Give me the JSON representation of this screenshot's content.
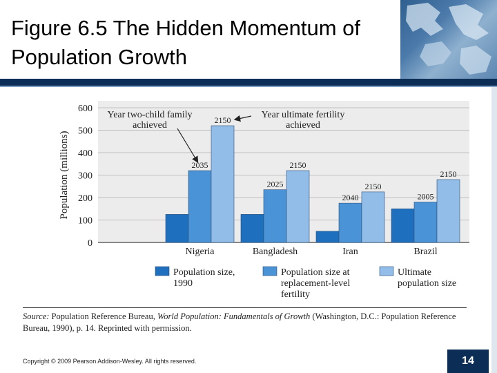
{
  "title": "Figure 6.5 The Hidden Momentum of Population Growth",
  "chart_data": {
    "type": "bar",
    "ylabel": "Population (millions)",
    "ylim": [
      0,
      600
    ],
    "yticks": [
      0,
      100,
      200,
      300,
      400,
      500,
      600
    ],
    "categories": [
      "Nigeria",
      "Bangladesh",
      "Iran",
      "Brazil"
    ],
    "series": [
      {
        "name": "Population size, 1990",
        "color": "#1f6fbf",
        "values": [
          125,
          125,
          50,
          150
        ],
        "labels": [
          "",
          "",
          "",
          ""
        ]
      },
      {
        "name": "Population size at replacement-level fertility",
        "color": "#4a93d6",
        "values": [
          320,
          235,
          175,
          180
        ],
        "labels": [
          "2035",
          "2025",
          "2040",
          "2005"
        ]
      },
      {
        "name": "Ultimate population size",
        "color": "#92bde8",
        "values": [
          520,
          320,
          225,
          280
        ],
        "labels": [
          "2150",
          "2150",
          "2150",
          "2150"
        ]
      }
    ],
    "annotations": [
      {
        "text": "Year two-child family achieved"
      },
      {
        "text": "Year ultimate fertility achieved"
      }
    ]
  },
  "source": {
    "label": "Source:",
    "text1": " Population Reference Bureau, ",
    "italic": "World Population: Fundamentals of Growth",
    "text2": " (Washington, D.C.: Population Reference Bureau, 1990), p. 14. Reprinted with permission."
  },
  "footer": {
    "copyright": "Copyright © 2009 Pearson Addison-Wesley. All rights reserved.",
    "page_number": "14"
  }
}
